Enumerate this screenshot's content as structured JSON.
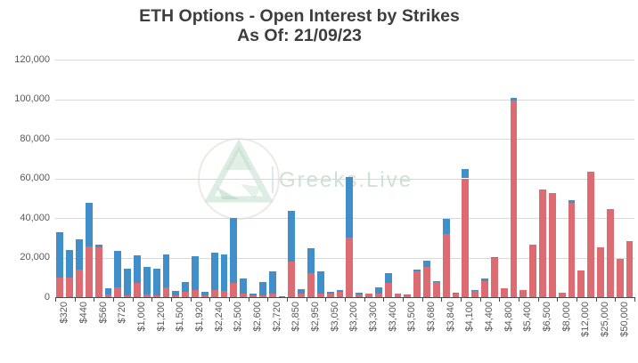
{
  "title": {
    "line1": "ETH Options - Open Interest by Strikes",
    "line2": "As Of: 21/09/23"
  },
  "watermark": {
    "brand_text": "Greeks.Live",
    "logo": "greeks-live-triangle-logo"
  },
  "colors": {
    "bar_blue": "#418fca",
    "bar_red": "#dc6c71",
    "gridline": "#d9d9d9",
    "axis_line": "#4a4a4a",
    "axis_text": "#595959",
    "title_text": "#3d3d3d",
    "watermark_green": "#a5cab3"
  },
  "y_axis": {
    "tick_labels": [
      "0",
      "20,000",
      "40,000",
      "60,000",
      "80,000",
      "100,000",
      "120,000"
    ],
    "min": 0,
    "max": 120000,
    "step": 20000
  },
  "x_axis": {
    "labels": [
      "$320",
      "$440",
      "$560",
      "$720",
      "$1,000",
      "$1,200",
      "$1,500",
      "$1,920",
      "$2,240",
      "$2,500",
      "$2,600",
      "$2,720",
      "$2,850",
      "$2,950",
      "$3,050",
      "$3,200",
      "$3,300",
      "$3,400",
      "$3,500",
      "$3,680",
      "$3,840",
      "$4,100",
      "$4,400",
      "$4,800",
      "$5,400",
      "$6,500",
      "$8,000",
      "$12,000",
      "$25,000",
      "$50,000"
    ],
    "note": "60 bars total; one label per group of 2 bars (every second strike unlabeled)"
  },
  "chart_data": {
    "type": "bar",
    "stacked": true,
    "title": "ETH Options - Open Interest by Strikes As Of: 21/09/23",
    "xlabel": "",
    "ylabel": "",
    "ylim": [
      0,
      120000
    ],
    "grid": true,
    "legend_position": "none",
    "bars_per_label_group": 2,
    "categories": [
      "$320",
      "",
      "$440",
      "",
      "$560",
      "",
      "$720",
      "",
      "$1,000",
      "",
      "$1,200",
      "",
      "$1,500",
      "",
      "$1,920",
      "",
      "$2,240",
      "",
      "$2,500",
      "",
      "$2,600",
      "",
      "$2,720",
      "",
      "$2,850",
      "",
      "$2,950",
      "",
      "$3,050",
      "",
      "$3,200",
      "",
      "$3,300",
      "",
      "$3,400",
      "",
      "$3,500",
      "",
      "$3,680",
      "",
      "$3,840",
      "",
      "$4,100",
      "",
      "$4,400",
      "",
      "$4,800",
      "",
      "$5,400",
      "",
      "$6,500",
      "",
      "$8,000",
      "",
      "$12,000",
      "",
      "$25,000",
      "",
      "$50,000",
      ""
    ],
    "series": [
      {
        "name": "red-bottom-segment",
        "color": "#dc6c71",
        "values": [
          10000,
          10000,
          14000,
          25500,
          25000,
          1500,
          5000,
          1000,
          7000,
          1500,
          1000,
          5000,
          1000,
          2500,
          3500,
          1000,
          3500,
          3000,
          7000,
          2000,
          1000,
          1000,
          2000,
          300,
          18000,
          2000,
          12000,
          2000,
          2000,
          2500,
          30000,
          1500,
          2000,
          2000,
          7000,
          2000,
          1000,
          13000,
          15500,
          7500,
          32000,
          2000,
          60000,
          3500,
          8000,
          20000,
          4500,
          99500,
          3700,
          26500,
          54500,
          52500,
          2200,
          47500,
          13500,
          63500,
          25000,
          44500,
          19500,
          28500
        ]
      },
      {
        "name": "blue-top-segment",
        "color": "#418fca",
        "values": [
          23000,
          14000,
          15000,
          22000,
          1500,
          3000,
          18500,
          13500,
          14000,
          14000,
          13500,
          16500,
          2000,
          5000,
          17000,
          1500,
          19000,
          18500,
          33000,
          7500,
          700,
          6500,
          11000,
          200,
          25500,
          2000,
          12500,
          11000,
          700,
          1000,
          30500,
          900,
          0,
          3000,
          5000,
          0,
          500,
          1000,
          3000,
          500,
          7500,
          200,
          4500,
          200,
          1400,
          200,
          0,
          1000,
          0,
          0,
          0,
          0,
          0,
          1500,
          0,
          0,
          0,
          0,
          0,
          0
        ]
      }
    ]
  }
}
